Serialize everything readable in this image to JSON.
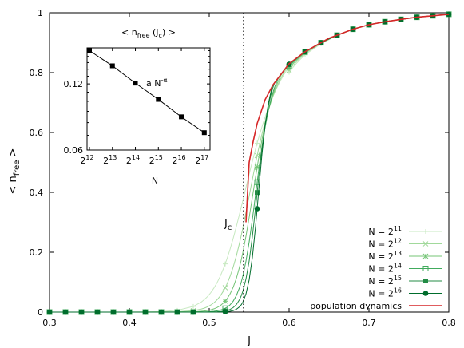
{
  "chart_data": [
    {
      "type": "line",
      "xlabel": "J",
      "ylabel": "< n",
      "ylabel_sub": "free",
      "ylabel_tail": " >",
      "xlim": [
        0.3,
        0.8
      ],
      "ylim": [
        0,
        1
      ],
      "x_ticks": [
        "0.3",
        "0.4",
        "0.5",
        "0.6",
        "0.7",
        "0.8"
      ],
      "y_ticks": [
        "0",
        "0.2",
        "0.4",
        "0.6",
        "0.8",
        "1"
      ],
      "annotation": {
        "text": "J",
        "sub": "c",
        "x": 0.543
      },
      "series": [
        {
          "name": "N = 2",
          "exp": "11",
          "marker": "plus",
          "color": "#c7e9c0",
          "x0": 0.54,
          "w": 0.04
        },
        {
          "name": "N = 2",
          "exp": "12",
          "marker": "x",
          "color": "#a1d99b",
          "x0": 0.548,
          "w": 0.032
        },
        {
          "name": "N = 2",
          "exp": "13",
          "marker": "star",
          "color": "#74c476",
          "x0": 0.553,
          "w": 0.026
        },
        {
          "name": "N = 2",
          "exp": "14",
          "marker": "opensquare",
          "color": "#41ab5d",
          "x0": 0.557,
          "w": 0.021
        },
        {
          "name": "N = 2",
          "exp": "15",
          "marker": "square",
          "color": "#238b45",
          "x0": 0.559,
          "w": 0.017
        },
        {
          "name": "N = 2",
          "exp": "16",
          "marker": "circle",
          "color": "#006d2c",
          "x0": 0.561,
          "w": 0.014
        },
        {
          "name": "population dynamics",
          "exp": "",
          "marker": "none",
          "color": "#d62728",
          "x": [
            0.546,
            0.55,
            0.555,
            0.56,
            0.565,
            0.57,
            0.58,
            0.6,
            0.62,
            0.65,
            0.68,
            0.7,
            0.72,
            0.74,
            0.76,
            0.78,
            0.8
          ],
          "y": [
            0.3,
            0.5,
            0.57,
            0.63,
            0.67,
            0.71,
            0.76,
            0.83,
            0.87,
            0.915,
            0.945,
            0.96,
            0.97,
            0.978,
            0.985,
            0.99,
            0.995
          ]
        }
      ]
    },
    {
      "type": "line",
      "title": "< n",
      "title_sub": "free",
      "title_tail": " (J",
      "title_sub2": "c",
      "title_end": ") >",
      "xlabel": "N",
      "x_ticks_base": "2",
      "x_ticks_exp": [
        "12",
        "13",
        "14",
        "15",
        "16",
        "17"
      ],
      "y_ticks": [
        "0.06",
        "0.12"
      ],
      "y_log": true,
      "x_log2": true,
      "fit_label": "a N",
      "fit_exp": "-α",
      "points": [
        {
          "exp": 12,
          "y": 0.17
        },
        {
          "exp": 13,
          "y": 0.145
        },
        {
          "exp": 14,
          "y": 0.121
        },
        {
          "exp": 15,
          "y": 0.102
        },
        {
          "exp": 16,
          "y": 0.085
        },
        {
          "exp": 17,
          "y": 0.072
        }
      ]
    }
  ]
}
